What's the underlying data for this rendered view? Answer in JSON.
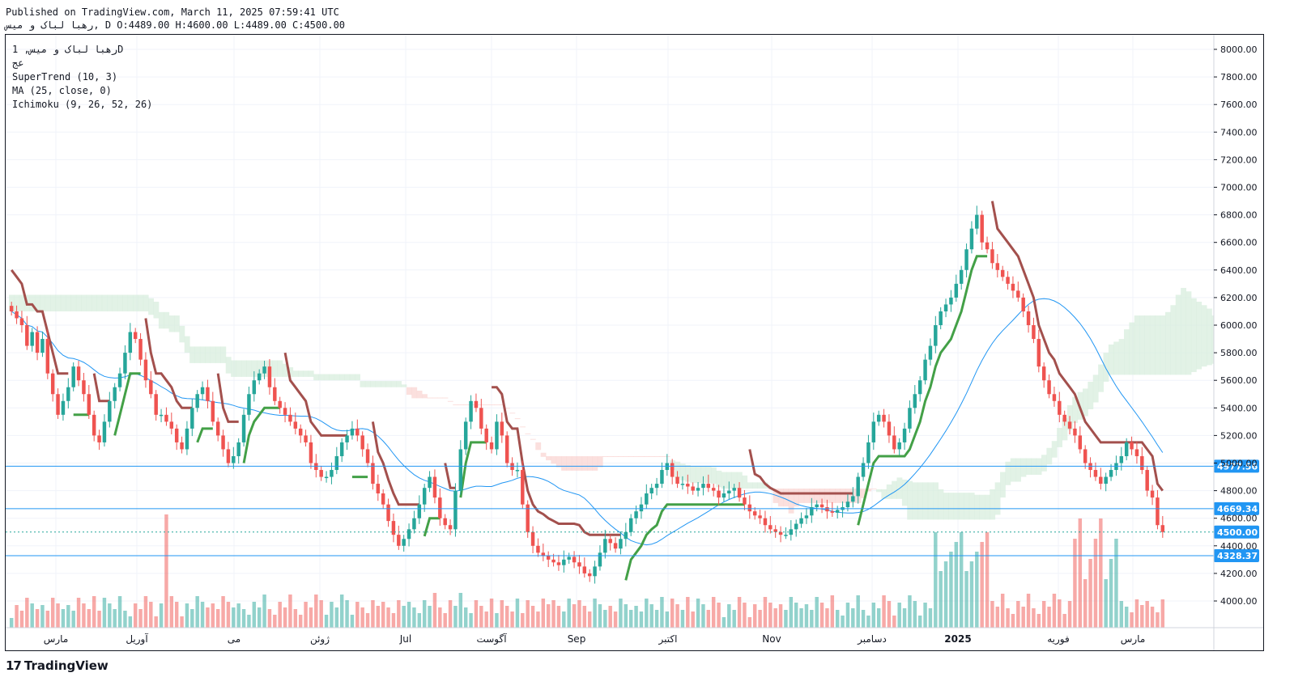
{
  "header": {
    "published_line": "Published on TradingView.com, March 11, 2025 07:59:41 UTC",
    "ohlc_line": "رهبا لباک و میس, D O:4489.00 H:4600.00 L:4489.00 C:4500.00"
  },
  "legend": {
    "symbol_line": "رهبا لباک و میس, 1D",
    "exchange": "عج",
    "indicators": [
      "SuperTrend (10, 3)",
      "MA (25, close, 0)",
      "Ichimoku (9, 26, 52, 26)"
    ]
  },
  "branding": {
    "logo_mark": "17",
    "logo_text": "TradingView"
  },
  "colors": {
    "up": "#26a69a",
    "down": "#ef5350",
    "supertrend_up": "#43a047",
    "supertrend_down": "#a3504d",
    "ma": "#2196f3",
    "cloud_bear": "#f9d5d3",
    "cloud_bull": "#d8eedd",
    "level_line": "#2196f3"
  },
  "chart_data": {
    "type": "candlestick",
    "title": "",
    "ylim": [
      3800,
      8100
    ],
    "y_ticks": [
      4000,
      4200,
      4400,
      4600,
      4800,
      5000,
      5200,
      5400,
      5600,
      5800,
      6000,
      6200,
      6400,
      6600,
      6800,
      7000,
      7200,
      7400,
      7600,
      7800,
      8000
    ],
    "x_tick_labels": [
      "مارس",
      "آوریل",
      "می",
      "ژوئن",
      "Jul",
      "آگوست",
      "Sep",
      "اکتبر",
      "Nov",
      "دسامبر",
      "2025",
      "فوریه",
      "مارس"
    ],
    "last_close": 4500,
    "price_labels": [
      {
        "value": 4977.56,
        "label": "4977.56",
        "style": "solid"
      },
      {
        "value": 4669.34,
        "label": "4669.34",
        "style": "solid"
      },
      {
        "value": 4500.0,
        "label": "4500.00",
        "style": "dotted"
      },
      {
        "value": 4328.37,
        "label": "4328.37",
        "style": "solid"
      }
    ],
    "candles_close": [
      6100,
      6050,
      6000,
      5850,
      5950,
      5800,
      5900,
      5650,
      5500,
      5350,
      5450,
      5550,
      5700,
      5600,
      5500,
      5350,
      5200,
      5150,
      5300,
      5450,
      5550,
      5650,
      5800,
      5950,
      5900,
      5750,
      5600,
      5500,
      5350,
      5350,
      5300,
      5250,
      5150,
      5100,
      5250,
      5400,
      5500,
      5550,
      5450,
      5300,
      5200,
      5100,
      5000,
      5050,
      5150,
      5350,
      5500,
      5600,
      5650,
      5700,
      5550,
      5450,
      5400,
      5350,
      5300,
      5250,
      5200,
      5150,
      5000,
      4950,
      4900,
      4900,
      4950,
      5050,
      5150,
      5200,
      5250,
      5200,
      5100,
      5000,
      4850,
      4780,
      4700,
      4580,
      4480,
      4400,
      4450,
      4520,
      4600,
      4700,
      4820,
      4900,
      4750,
      4600,
      4550,
      4520,
      4800,
      5100,
      5300,
      5450,
      5400,
      5250,
      5150,
      5100,
      5300,
      5200,
      5000,
      4950,
      4950,
      4700,
      4500,
      4400,
      4350,
      4330,
      4300,
      4280,
      4260,
      4300,
      4320,
      4280,
      4250,
      4200,
      4180,
      4250,
      4350,
      4450,
      4420,
      4380,
      4450,
      4500,
      4600,
      4650,
      4700,
      4780,
      4820,
      4850,
      4950,
      5000,
      4900,
      4850,
      4850,
      4830,
      4800,
      4820,
      4850,
      4820,
      4800,
      4750,
      4780,
      4800,
      4820,
      4750,
      4700,
      4650,
      4620,
      4600,
      4550,
      4520,
      4500,
      4480,
      4480,
      4520,
      4560,
      4600,
      4620,
      4680,
      4700,
      4680,
      4650,
      4640,
      4660,
      4680,
      4720,
      4760,
      4900,
      5000,
      5150,
      5300,
      5350,
      5300,
      5200,
      5100,
      5150,
      5250,
      5400,
      5500,
      5600,
      5750,
      5850,
      6000,
      6100,
      6150,
      6200,
      6300,
      6400,
      6550,
      6700,
      6800,
      6600,
      6550,
      6450,
      6400,
      6350,
      6300,
      6250,
      6200,
      6100,
      6000,
      5900,
      5700,
      5600,
      5500,
      5450,
      5350,
      5300,
      5250,
      5200,
      5100,
      5000,
      4950,
      4900,
      4850,
      4900,
      4950,
      5000,
      5050,
      5150,
      5100,
      5050,
      4950,
      4800,
      4750,
      4550,
      4500
    ]
  }
}
